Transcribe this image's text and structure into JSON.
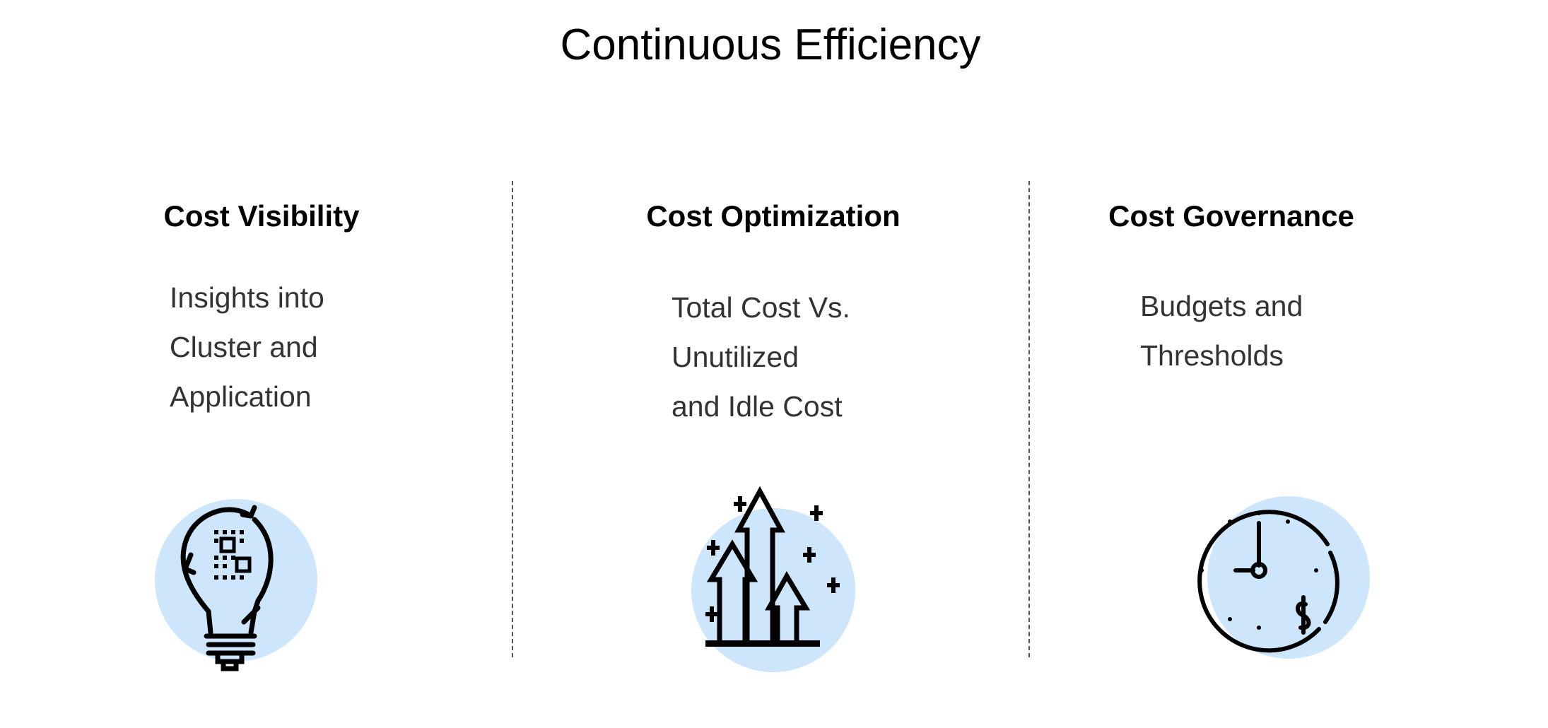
{
  "title": "Continuous Efficiency",
  "accent_color": "#cde6fb",
  "columns": [
    {
      "heading": "Cost Visibility",
      "lines": [
        "Insights into",
        "Cluster and",
        "Application"
      ],
      "icon": "lightbulb-chip-refresh-icon"
    },
    {
      "heading": "Cost Optimization",
      "lines": [
        "Total Cost Vs.",
        "Unutilized",
        "and Idle Cost"
      ],
      "icon": "arrows-up-growth-icon"
    },
    {
      "heading": "Cost Governance",
      "lines": [
        "Budgets and",
        "Thresholds"
      ],
      "icon": "clock-dollar-icon"
    }
  ]
}
